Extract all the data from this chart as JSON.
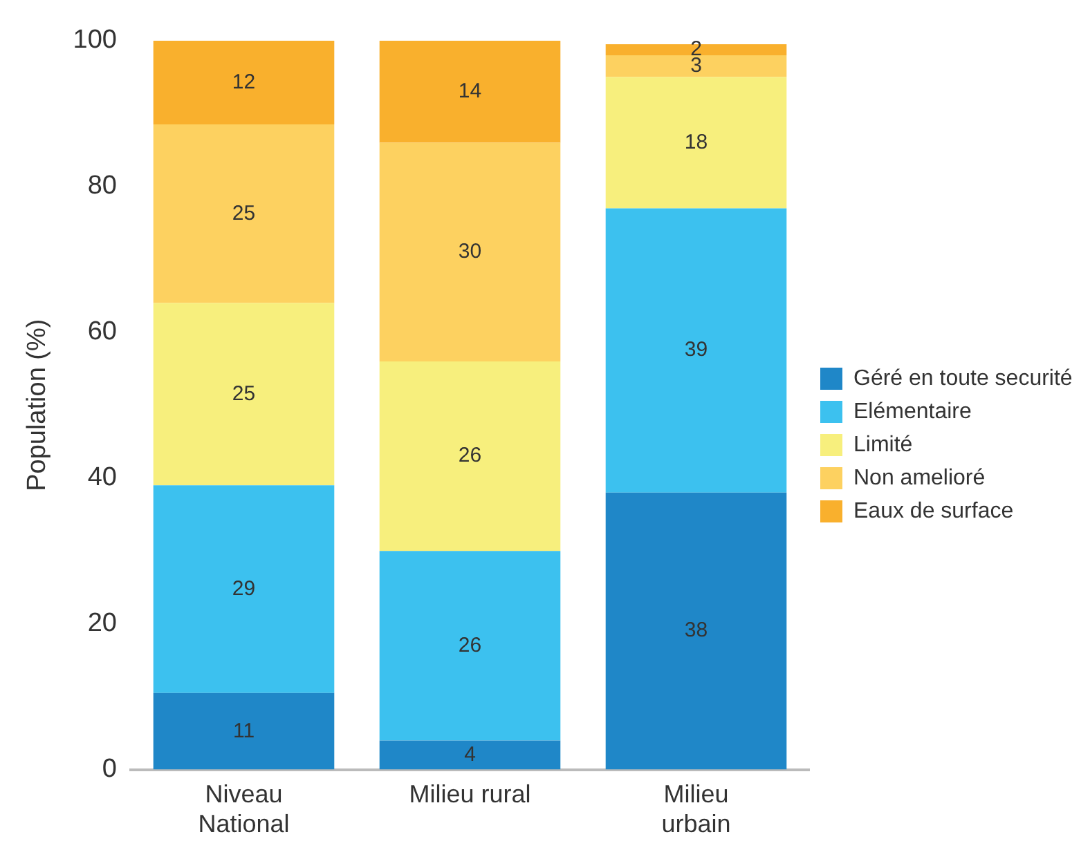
{
  "chart_data": {
    "type": "bar",
    "stacked": true,
    "ylabel": "Population (%)",
    "categories": [
      "Niveau National",
      "Milieu rural",
      "Milieu urbain"
    ],
    "series": [
      {
        "name": "Géré en toute securité",
        "color": "#1f87c8",
        "values": [
          10.5,
          4,
          38
        ],
        "value_labels": [
          "11",
          "4",
          "38"
        ]
      },
      {
        "name": "Elémentaire",
        "color": "#3cc1ef",
        "values": [
          28.5,
          26,
          39
        ],
        "value_labels": [
          "29",
          "26",
          "39"
        ]
      },
      {
        "name": "Limité",
        "color": "#f7ef7d",
        "values": [
          25,
          26,
          18
        ],
        "value_labels": [
          "25",
          "26",
          "18"
        ]
      },
      {
        "name": "Non amelioré",
        "color": "#fdd160",
        "values": [
          24.5,
          30,
          3
        ],
        "value_labels": [
          "25",
          "30",
          "3"
        ]
      },
      {
        "name": "Eaux de surface",
        "color": "#f9b02d",
        "values": [
          11.5,
          14,
          1.5
        ],
        "value_labels": [
          "12",
          "14",
          "2"
        ]
      }
    ],
    "ylim": [
      0,
      100
    ],
    "yticks": [
      0,
      20,
      40,
      60,
      80,
      100
    ],
    "grid": false,
    "legend": "right"
  }
}
